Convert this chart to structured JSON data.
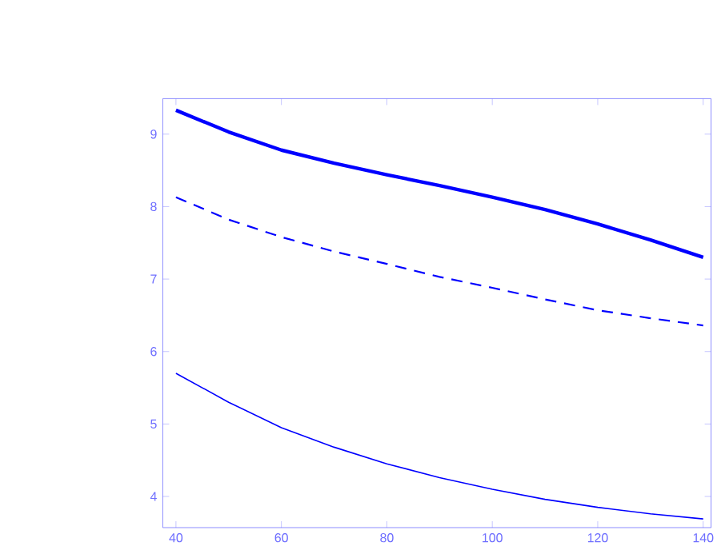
{
  "chart_data": {
    "type": "line",
    "xlim": [
      37.5,
      141.5
    ],
    "ylim": [
      3.57,
      9.49
    ],
    "xticks": [
      40,
      60,
      80,
      100,
      120,
      140
    ],
    "yticks": [
      4,
      5,
      6,
      7,
      8,
      9
    ],
    "grid": false,
    "series": [
      {
        "color": "#0000ff",
        "line_style": "solid",
        "x": [
          40,
          50,
          60,
          70,
          80,
          90,
          100,
          110,
          120,
          130,
          140
        ],
        "values": [
          9.33,
          9.03,
          8.78,
          8.6,
          8.44,
          8.29,
          8.13,
          7.96,
          7.76,
          7.54,
          7.3
        ]
      },
      {
        "color": "#0000ff",
        "line_style": "dashed",
        "x": [
          40,
          50,
          60,
          70,
          80,
          90,
          100,
          110,
          120,
          130,
          140
        ],
        "values": [
          8.13,
          7.82,
          7.58,
          7.38,
          7.21,
          7.03,
          6.88,
          6.72,
          6.57,
          6.46,
          6.36
        ]
      },
      {
        "color": "#0000ff",
        "line_style": "solid",
        "x": [
          40,
          50,
          60,
          70,
          80,
          90,
          100,
          110,
          120,
          130,
          140
        ],
        "values": [
          5.7,
          5.3,
          4.95,
          4.68,
          4.45,
          4.26,
          4.1,
          3.96,
          3.85,
          3.76,
          3.69
        ]
      }
    ]
  }
}
